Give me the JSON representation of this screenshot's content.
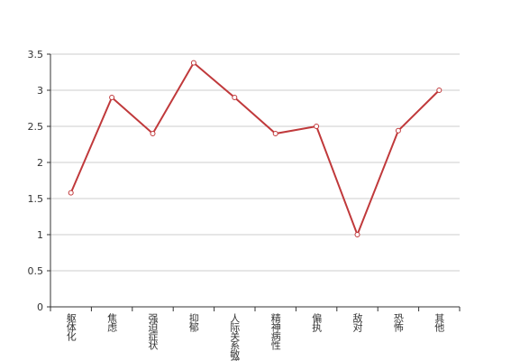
{
  "chart_data": {
    "type": "line",
    "categories": [
      "躯体化",
      "焦虑",
      "强迫症状",
      "抑郁",
      "人际关系敏感",
      "精神病性",
      "偏执",
      "敌对",
      "恐怖",
      "其他"
    ],
    "values": [
      1.58,
      2.9,
      2.4,
      3.38,
      2.9,
      2.4,
      2.5,
      1.0,
      2.44,
      3.0
    ],
    "color": "#c0393b",
    "ylim": [
      0,
      3.5
    ],
    "yticks": [
      0,
      0.5,
      1,
      1.5,
      2,
      2.5,
      3,
      3.5
    ],
    "grid": true
  }
}
